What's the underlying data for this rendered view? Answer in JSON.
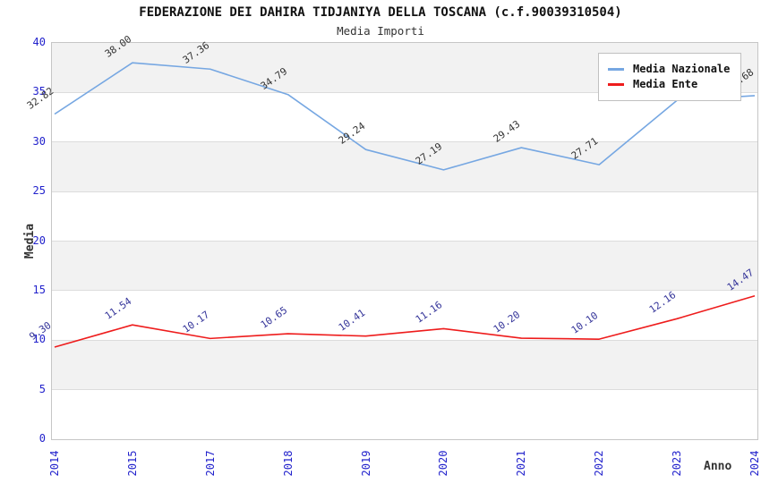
{
  "header": {
    "title": "FEDERAZIONE DEI DAHIRA TIDJANIYA DELLA TOSCANA (c.f.90039310504)",
    "subtitle": "Media Importi"
  },
  "axes": {
    "y_label": "Media",
    "x_label": "Anno"
  },
  "chart_data": {
    "type": "line",
    "title": "FEDERAZIONE DEI DAHIRA TIDJANIYA DELLA TOSCANA (c.f.90039310504)",
    "subtitle": "Media Importi",
    "xlabel": "Anno",
    "ylabel": "Media",
    "categories": [
      "2014",
      "2015",
      "2017",
      "2018",
      "2019",
      "2020",
      "2021",
      "2022",
      "2023",
      "2024"
    ],
    "series": [
      {
        "name": "Media Nazionale",
        "color": "#76a7e2",
        "label_color": "#333333",
        "values": [
          32.82,
          38.0,
          37.36,
          34.79,
          29.24,
          27.19,
          29.43,
          27.71,
          34.2,
          34.68
        ],
        "labels": [
          "32.82",
          "38.00",
          "37.36",
          "34.79",
          "29.24",
          "27.19",
          "29.43",
          "27.71",
          "34.20",
          "34.68"
        ]
      },
      {
        "name": "Media Ente",
        "color": "#ee1c1c",
        "label_color": "#333399",
        "values": [
          9.3,
          11.54,
          10.17,
          10.65,
          10.41,
          11.16,
          10.2,
          10.1,
          12.16,
          14.47
        ],
        "labels": [
          "9.30",
          "11.54",
          "10.17",
          "10.65",
          "10.41",
          "11.16",
          "10.20",
          "10.10",
          "12.16",
          "14.47"
        ]
      }
    ],
    "ylim": [
      0,
      40
    ],
    "y_ticks": [
      0,
      5,
      10,
      15,
      20,
      25,
      30,
      35,
      40
    ],
    "grid": "horizontal gridlines with alternating gray/white bands",
    "band_gray": "#f2f2f2",
    "gridline_color": "#dcdcdc",
    "tick_label_color": "#2222cc",
    "legend_position": "top-right"
  }
}
